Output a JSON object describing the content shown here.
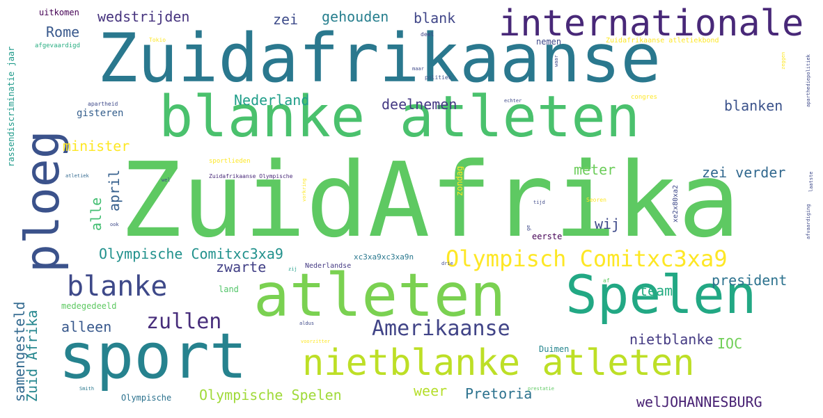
{
  "words": [
    {
      "text": "ZuidAfrika",
      "color": "#5ec962"
    },
    {
      "text": "Zuidafrikaanse",
      "color": "#2a788e"
    },
    {
      "text": "blanke atleten",
      "color": "#4ac16d"
    },
    {
      "text": "atleten",
      "color": "#7ad151"
    },
    {
      "text": "sport",
      "color": "#26828e"
    },
    {
      "text": "Spelen",
      "color": "#22a884"
    },
    {
      "text": "ploeg",
      "color": "#3b528b"
    },
    {
      "text": "internationale",
      "color": "#482878"
    },
    {
      "text": "nietblanke atleten",
      "color": "#bddf26"
    },
    {
      "text": "blanke",
      "color": "#3e4989"
    },
    {
      "text": "Olympisch Comitxc3xa9",
      "color": "#fde725"
    },
    {
      "text": "Amerikaanse",
      "color": "#414487"
    },
    {
      "text": "zullen",
      "color": "#472d7b"
    },
    {
      "text": "Olympische Comitxc3xa9",
      "color": "#21918c"
    },
    {
      "text": "Olympische Spelen",
      "color": "#a0da39"
    },
    {
      "text": "wedstrijden",
      "color": "#46337e"
    },
    {
      "text": "gehouden",
      "color": "#277f8e"
    },
    {
      "text": "Nederland",
      "color": "#1f9e89"
    },
    {
      "text": "deelnemen",
      "color": "#443983"
    },
    {
      "text": "blanken",
      "color": "#3b528b"
    },
    {
      "text": "zei verder",
      "color": "#31688e"
    },
    {
      "text": "minister",
      "color": "#fde725"
    },
    {
      "text": "Rome",
      "color": "#38588c"
    },
    {
      "text": "blank",
      "color": "#404688"
    },
    {
      "text": "zei",
      "color": "#3e4c8a"
    },
    {
      "text": "april",
      "color": "#355f8d"
    },
    {
      "text": "alle",
      "color": "#42be71"
    },
    {
      "text": "meter",
      "color": "#6ccd5a"
    },
    {
      "text": "wij",
      "color": "#3e4989"
    },
    {
      "text": "zwarte",
      "color": "#424086"
    },
    {
      "text": "president",
      "color": "#2c728e"
    },
    {
      "text": "team",
      "color": "#25ac82"
    },
    {
      "text": "alleen",
      "color": "#38588c"
    },
    {
      "text": "nietblanke",
      "color": "#443a83"
    },
    {
      "text": "IOC",
      "color": "#70cf57"
    },
    {
      "text": "samengesteld",
      "color": "#31688e"
    },
    {
      "text": "Zuid Afrika",
      "color": "#24868e"
    },
    {
      "text": "Pretoria",
      "color": "#2c728e"
    },
    {
      "text": "weer",
      "color": "#b5de2b"
    },
    {
      "text": "welJOHANNESBURG",
      "color": "#482173"
    },
    {
      "text": "zondag",
      "color": "#fde725"
    },
    {
      "text": "gisteren",
      "color": "#355f8d"
    },
    {
      "text": "rassendiscriminatie jaar",
      "color": "#1f9a8a"
    },
    {
      "text": "uitkomen",
      "color": "#440154"
    },
    {
      "text": "afgevaardigd",
      "color": "#27ad81"
    },
    {
      "text": "medegedeeld",
      "color": "#5ec962"
    },
    {
      "text": "Olympische",
      "color": "#2c728e"
    },
    {
      "text": "Duimen",
      "color": "#25858e"
    },
    {
      "text": "Nederlandse",
      "color": "#443983"
    },
    {
      "text": "land",
      "color": "#52c569"
    },
    {
      "text": "xc3xa9xc3xa9n",
      "color": "#2a788e"
    },
    {
      "text": "eerste",
      "color": "#440154"
    },
    {
      "text": "sportlieden",
      "color": "#fde725"
    },
    {
      "text": "Zuidafrikaanse Olympische",
      "color": "#482878"
    },
    {
      "text": "Zuidafrikaanse atletiekbond",
      "color": "#fde725"
    },
    {
      "text": "nemen",
      "color": "#3e4989"
    },
    {
      "text": "politiek",
      "color": "#3b528b"
    },
    {
      "text": "congres",
      "color": "#fde725"
    },
    {
      "text": "apartheid",
      "color": "#3e4989"
    },
    {
      "text": "aparthediepolitiek",
      "color": "#3e4989"
    },
    {
      "text": "afvaardiging",
      "color": "#3e4989"
    },
    {
      "text": "xe2x80xa2",
      "color": "#3e4989"
    },
    {
      "text": "Tokio",
      "color": "#fde725"
    },
    {
      "text": "Smith",
      "color": "#2a788e"
    },
    {
      "text": "prestatie",
      "color": "#5ec962"
    },
    {
      "text": "deel",
      "color": "#414487"
    },
    {
      "text": "aldus",
      "color": "#3e4989"
    },
    {
      "text": "voorzitter",
      "color": "#fde725"
    },
    {
      "text": "echter",
      "color": "#3e4989"
    },
    {
      "text": "atletiek",
      "color": "#31688e"
    },
    {
      "text": "af",
      "color": "#5ec962"
    },
    {
      "text": "drie",
      "color": "#3e4989"
    },
    {
      "text": "tijd",
      "color": "#3e4989"
    },
    {
      "text": "Seoren",
      "color": "#fde725"
    },
    {
      "text": "waar",
      "color": "#3e4989"
    },
    {
      "text": "zeggen",
      "color": "#fde725"
    },
    {
      "text": "vorkring",
      "color": "#fde725"
    },
    {
      "text": "ook",
      "color": "#3e4989"
    },
    {
      "text": "ge",
      "color": "#3e4989"
    },
    {
      "text": "laatste",
      "color": "#3e4989"
    },
    {
      "text": "wel",
      "color": "#3e4989"
    },
    {
      "text": "zij",
      "color": "#1f9e89"
    },
    {
      "text": "maar",
      "color": "#3e4989"
    }
  ]
}
